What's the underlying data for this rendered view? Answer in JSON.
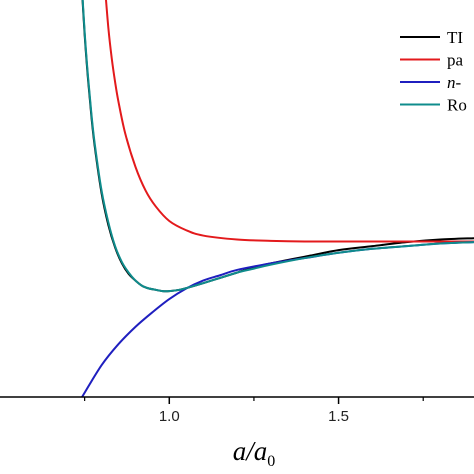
{
  "chart_data": {
    "type": "line",
    "xlabel": {
      "main": "a/a",
      "subscript": "0"
    },
    "ylabel": "",
    "xlim": [
      0.5,
      1.9
    ],
    "ylim": [
      -1.5,
      1.5
    ],
    "x_ticks": [
      {
        "value": 1.0,
        "label": "1.0"
      },
      {
        "value": 1.5,
        "label": "1.5"
      }
    ],
    "grid": false,
    "legend_position": "top-right",
    "series": [
      {
        "name": "TI",
        "color": "#000000",
        "x": [
          0.74,
          0.75,
          0.76,
          0.77,
          0.78,
          0.8,
          0.82,
          0.84,
          0.86,
          0.88,
          0.9,
          0.92,
          0.94,
          0.96,
          0.98,
          1.0,
          1.03,
          1.06,
          1.1,
          1.15,
          1.2,
          1.25,
          1.3,
          1.4,
          1.5,
          1.6,
          1.7,
          1.8,
          1.9
        ],
        "y": [
          1.67,
          1.24,
          0.9,
          0.62,
          0.39,
          0.04,
          -0.2,
          -0.37,
          -0.49,
          -0.57,
          -0.62,
          -0.66,
          -0.68,
          -0.69,
          -0.7,
          -0.7,
          -0.69,
          -0.67,
          -0.64,
          -0.6,
          -0.56,
          -0.52,
          -0.49,
          -0.44,
          -0.39,
          -0.36,
          -0.33,
          -0.31,
          -0.3
        ]
      },
      {
        "name": "pa",
        "color": "#e31a1c",
        "x": [
          0.81,
          0.82,
          0.83,
          0.84,
          0.85,
          0.87,
          0.9,
          0.93,
          0.96,
          1.0,
          1.05,
          1.1,
          1.2,
          1.3,
          1.4,
          1.5,
          1.6,
          1.7,
          1.8,
          1.9
        ],
        "y": [
          1.6,
          1.29,
          1.06,
          0.88,
          0.73,
          0.49,
          0.24,
          0.06,
          -0.06,
          -0.17,
          -0.24,
          -0.28,
          -0.31,
          -0.32,
          -0.325,
          -0.325,
          -0.325,
          -0.325,
          -0.325,
          -0.325
        ]
      },
      {
        "name": "n-",
        "color": "#1f1fbf",
        "x": [
          0.74,
          0.8,
          0.85,
          0.9,
          0.95,
          1.0,
          1.05,
          1.1,
          1.15,
          1.2,
          1.3,
          1.4,
          1.5,
          1.6,
          1.7,
          1.8,
          1.9
        ],
        "y": [
          -1.51,
          -1.26,
          -1.1,
          -0.97,
          -0.86,
          -0.76,
          -0.68,
          -0.62,
          -0.58,
          -0.54,
          -0.49,
          -0.45,
          -0.41,
          -0.38,
          -0.36,
          -0.34,
          -0.33
        ]
      },
      {
        "name": "Ro",
        "color": "#0f8c8c",
        "x": [
          0.74,
          0.75,
          0.76,
          0.77,
          0.78,
          0.8,
          0.82,
          0.84,
          0.86,
          0.88,
          0.9,
          0.92,
          0.94,
          0.96,
          0.98,
          1.0,
          1.03,
          1.06,
          1.1,
          1.15,
          1.2,
          1.25,
          1.3,
          1.4,
          1.5,
          1.6,
          1.7,
          1.8,
          1.9
        ],
        "y": [
          1.69,
          1.26,
          0.92,
          0.64,
          0.41,
          0.06,
          -0.18,
          -0.36,
          -0.48,
          -0.56,
          -0.62,
          -0.66,
          -0.68,
          -0.69,
          -0.7,
          -0.7,
          -0.69,
          -0.67,
          -0.64,
          -0.6,
          -0.56,
          -0.53,
          -0.5,
          -0.45,
          -0.41,
          -0.38,
          -0.36,
          -0.34,
          -0.33
        ]
      }
    ]
  }
}
